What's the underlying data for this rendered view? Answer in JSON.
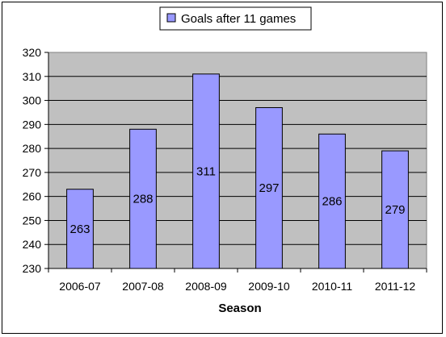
{
  "chart_data": {
    "type": "bar",
    "categories": [
      "2006-07",
      "2007-08",
      "2008-09",
      "2009-10",
      "2010-11",
      "2011-12"
    ],
    "series": [
      {
        "name": "Goals after 11 games",
        "values": [
          263,
          288,
          311,
          297,
          286,
          279
        ],
        "color": "#9999ff"
      }
    ],
    "data_labels": [
      "263",
      "288",
      "311",
      "297",
      "286",
      "279"
    ],
    "xlabel": "Season",
    "ylabel": "",
    "ylim": [
      230,
      320
    ],
    "yticks": [
      230,
      240,
      250,
      260,
      270,
      280,
      290,
      300,
      310,
      320
    ],
    "grid": true,
    "legend_position": "top",
    "plot_background": "#c0c0c0",
    "grid_color": "#000000"
  }
}
